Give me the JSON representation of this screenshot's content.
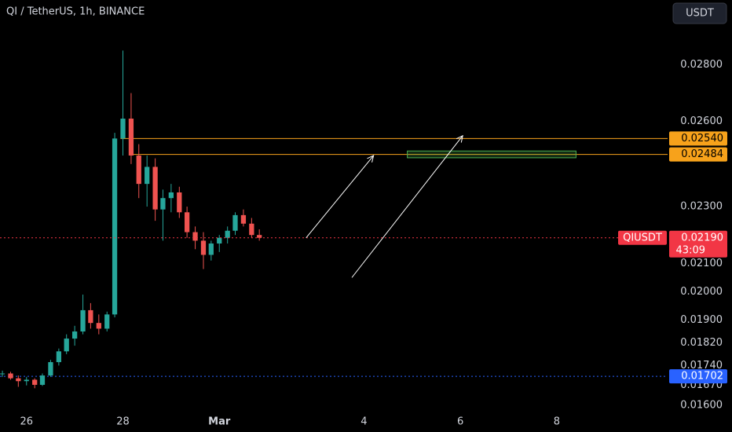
{
  "chart_data": {
    "type": "candlestick",
    "title": "QI / TetherUS, 1h, BINANCE",
    "currency_button": "USDT",
    "up_color": "#26a69a",
    "down_color": "#ef5350",
    "x": [
      25.5,
      25.67,
      25.83,
      26.0,
      26.17,
      26.33,
      26.5,
      26.67,
      26.83,
      27.0,
      27.17,
      27.33,
      27.5,
      27.67,
      27.83,
      28.0,
      28.17,
      28.33,
      28.5,
      28.67,
      28.83,
      29.0,
      29.17,
      29.33,
      29.5,
      29.67,
      29.83,
      30.0,
      30.17,
      30.33,
      30.5,
      30.67,
      30.83
    ],
    "open": [
      0.0171,
      0.01712,
      0.01695,
      0.01685,
      0.0169,
      0.01672,
      0.01705,
      0.01752,
      0.0179,
      0.01835,
      0.0186,
      0.01935,
      0.0189,
      0.0187,
      0.0192,
      0.0254,
      0.0261,
      0.0248,
      0.0238,
      0.0244,
      0.0229,
      0.0233,
      0.0235,
      0.0228,
      0.0221,
      0.0218,
      0.0213,
      0.0217,
      0.0219,
      0.02215,
      0.0227,
      0.0224,
      0.022
    ],
    "high": [
      0.01722,
      0.01718,
      0.01705,
      0.017,
      0.01695,
      0.01712,
      0.0176,
      0.018,
      0.0185,
      0.0188,
      0.0199,
      0.0196,
      0.0192,
      0.0193,
      0.0256,
      0.0285,
      0.027,
      0.0252,
      0.0248,
      0.0247,
      0.0236,
      0.0238,
      0.0237,
      0.023,
      0.0223,
      0.0221,
      0.0218,
      0.022,
      0.0223,
      0.0228,
      0.0229,
      0.0226,
      0.0222
    ],
    "low": [
      0.017,
      0.0169,
      0.01665,
      0.0167,
      0.0166,
      0.01668,
      0.017,
      0.0174,
      0.0178,
      0.0181,
      0.0185,
      0.0187,
      0.0185,
      0.0186,
      0.0191,
      0.0248,
      0.0245,
      0.0233,
      0.023,
      0.0225,
      0.0218,
      0.0228,
      0.0226,
      0.0219,
      0.0215,
      0.0208,
      0.0211,
      0.0214,
      0.0217,
      0.022,
      0.0223,
      0.0219,
      0.0218
    ],
    "close": [
      0.01712,
      0.01695,
      0.01685,
      0.0169,
      0.01672,
      0.01705,
      0.01752,
      0.0179,
      0.01835,
      0.0186,
      0.01935,
      0.0189,
      0.0187,
      0.0192,
      0.0254,
      0.0261,
      0.0248,
      0.0238,
      0.0244,
      0.0229,
      0.0233,
      0.0235,
      0.0228,
      0.0221,
      0.0218,
      0.0213,
      0.0217,
      0.0219,
      0.02215,
      0.0227,
      0.0224,
      0.022,
      0.0219
    ],
    "xlim": [
      25.45,
      39.3
    ],
    "xticks": [
      26,
      28,
      {
        "value": 30,
        "label": "Mar"
      },
      {
        "value": 33,
        "label": "4"
      },
      {
        "value": 35,
        "label": "6"
      },
      {
        "value": 37,
        "label": "8"
      }
    ],
    "ylim": [
      0.01575,
      0.02945
    ],
    "yticks": [
      {
        "value": 0.028,
        "label": "0.02800"
      },
      {
        "value": 0.026,
        "label": "0.02600"
      },
      {
        "value": 0.023,
        "label": "0.02300"
      },
      {
        "value": 0.021,
        "label": "0.02100"
      },
      {
        "value": 0.02,
        "label": "0.02000"
      },
      {
        "value": 0.019,
        "label": "0.01900"
      },
      {
        "value": 0.0182,
        "label": "0.01820"
      },
      {
        "value": 0.0174,
        "label": "0.01740"
      },
      {
        "value": 0.0167,
        "label": "0.01670"
      },
      {
        "value": 0.016,
        "label": "0.01600"
      }
    ],
    "price_lines": [
      {
        "value": 0.0254,
        "label": "0.02540",
        "color": "#f7a21b",
        "start": 27.95
      },
      {
        "value": 0.02484,
        "label": "0.02484",
        "color": "#f7a21b",
        "start": 28.2
      },
      {
        "value": 0.01702,
        "label": "0.01702",
        "color": "#2962ff",
        "start": 25.45
      }
    ],
    "last_price": {
      "name": "QIUSDT",
      "value": 0.0219,
      "label": "0.02190",
      "countdown": "43:09",
      "color": "#f23645"
    },
    "zone": {
      "x": [
        33.9,
        37.4
      ],
      "y": [
        0.02472,
        0.02496
      ],
      "color": "#4caf50"
    },
    "arrows": [
      {
        "from": [
          31.8,
          0.0219
        ],
        "to": [
          33.2,
          0.0248
        ]
      },
      {
        "from": [
          32.75,
          0.0205
        ],
        "to": [
          35.05,
          0.0255
        ]
      }
    ]
  }
}
